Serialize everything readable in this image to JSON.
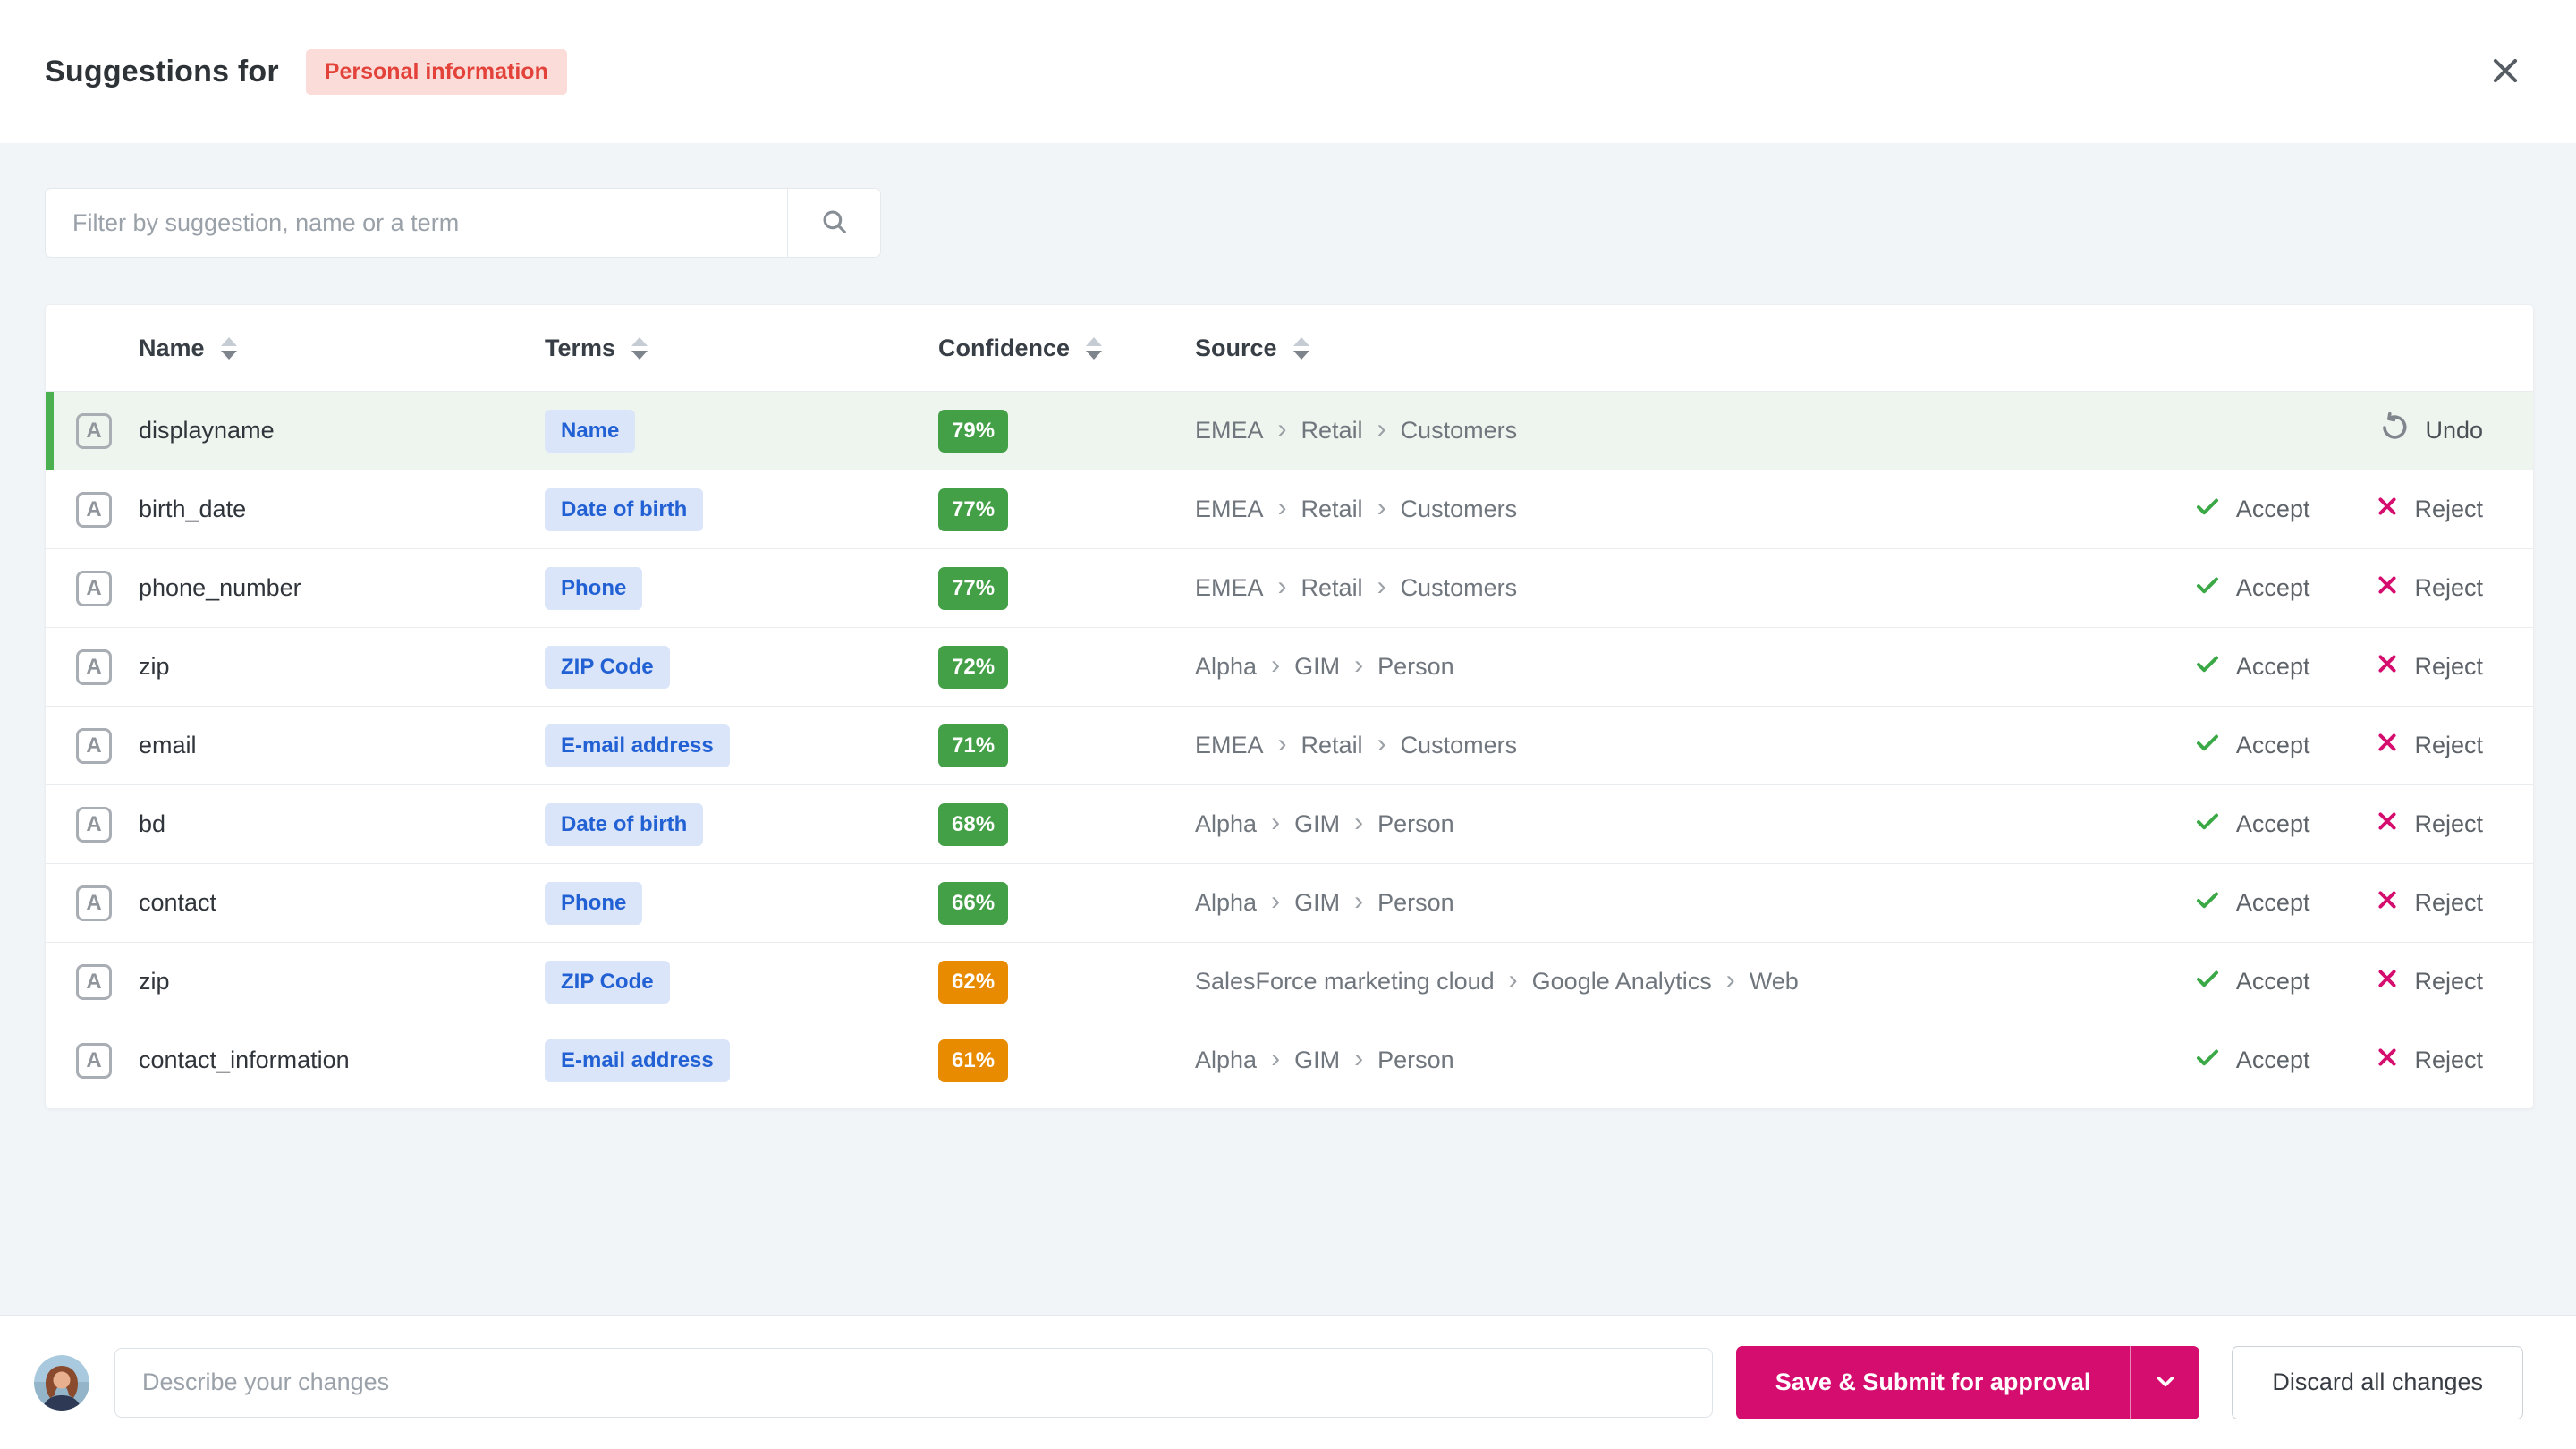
{
  "header": {
    "title": "Suggestions for",
    "badge": "Personal information"
  },
  "filter": {
    "placeholder": "Filter by suggestion, name or a term"
  },
  "table": {
    "columns": [
      {
        "label": "Name"
      },
      {
        "label": "Terms"
      },
      {
        "label": "Confidence"
      },
      {
        "label": "Source"
      }
    ],
    "actions": {
      "accept_label": "Accept",
      "reject_label": "Reject",
      "undo_label": "Undo"
    },
    "rows": [
      {
        "icon": "A",
        "name": "displayname",
        "term": "Name",
        "confidence": "79%",
        "confidence_level": "high",
        "source": [
          "EMEA",
          "Retail",
          "Customers"
        ],
        "state": "accepted"
      },
      {
        "icon": "A",
        "name": "birth_date",
        "term": "Date of birth",
        "confidence": "77%",
        "confidence_level": "high",
        "source": [
          "EMEA",
          "Retail",
          "Customers"
        ],
        "state": "pending"
      },
      {
        "icon": "A",
        "name": "phone_number",
        "term": "Phone",
        "confidence": "77%",
        "confidence_level": "high",
        "source": [
          "EMEA",
          "Retail",
          "Customers"
        ],
        "state": "pending"
      },
      {
        "icon": "A",
        "name": "zip",
        "term": "ZIP Code",
        "confidence": "72%",
        "confidence_level": "high",
        "source": [
          "Alpha",
          "GIM",
          "Person"
        ],
        "state": "pending"
      },
      {
        "icon": "A",
        "name": "email",
        "term": "E-mail address",
        "confidence": "71%",
        "confidence_level": "high",
        "source": [
          "EMEA",
          "Retail",
          "Customers"
        ],
        "state": "pending"
      },
      {
        "icon": "A",
        "name": "bd",
        "term": "Date of birth",
        "confidence": "68%",
        "confidence_level": "high",
        "source": [
          "Alpha",
          "GIM",
          "Person"
        ],
        "state": "pending"
      },
      {
        "icon": "A",
        "name": "contact",
        "term": "Phone",
        "confidence": "66%",
        "confidence_level": "high",
        "source": [
          "Alpha",
          "GIM",
          "Person"
        ],
        "state": "pending"
      },
      {
        "icon": "A",
        "name": "zip",
        "term": "ZIP Code",
        "confidence": "62%",
        "confidence_level": "medium",
        "source": [
          "SalesForce marketing cloud",
          "Google Analytics",
          "Web"
        ],
        "state": "pending"
      },
      {
        "icon": "A",
        "name": "contact_information",
        "term": "E-mail address",
        "confidence": "61%",
        "confidence_level": "medium",
        "source": [
          "Alpha",
          "GIM",
          "Person"
        ],
        "state": "pending"
      }
    ]
  },
  "footer": {
    "comment_placeholder": "Describe your changes",
    "save_button": "Save & Submit for approval",
    "discard_button": "Discard all changes"
  },
  "colors": {
    "accent_pink": "#d40d6e",
    "confidence_high": "#43a047",
    "confidence_medium": "#e98b00",
    "term_badge_bg": "#dbe5f9",
    "term_badge_text": "#2261d4",
    "selected_row_bg": "#eef5ee",
    "selected_row_accent": "#4caf50",
    "header_badge_bg": "#fbdcd8",
    "header_badge_text": "#e2423a",
    "page_background": "#f2f5f8"
  }
}
